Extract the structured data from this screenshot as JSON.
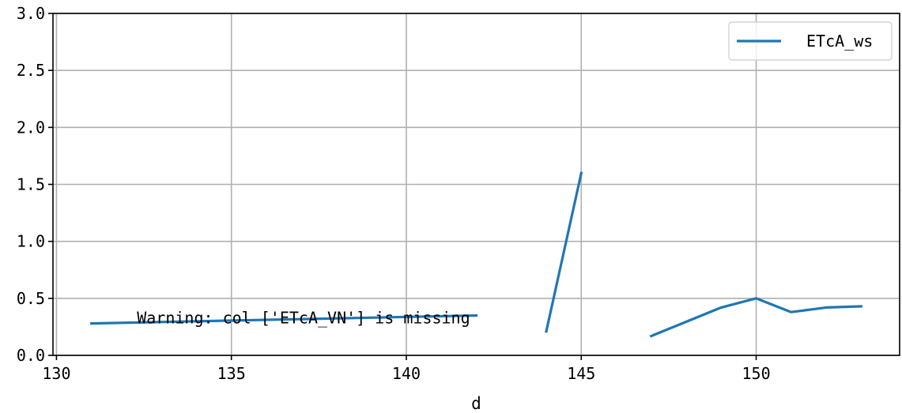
{
  "chart_data": {
    "type": "line",
    "xlabel": "d",
    "ylabel": "",
    "xlim": [
      129.9,
      154.1
    ],
    "ylim": [
      0.0,
      3.0
    ],
    "xticks": [
      130,
      135,
      140,
      145,
      150
    ],
    "xtick_labels": [
      "130",
      "135",
      "140",
      "145",
      "150"
    ],
    "yticks": [
      0.0,
      0.5,
      1.0,
      1.5,
      2.0,
      2.5,
      3.0
    ],
    "ytick_labels": [
      "0.0",
      "0.5",
      "1.0",
      "1.5",
      "2.0",
      "2.5",
      "3.0"
    ],
    "grid": true,
    "legend_position": "top-right",
    "series": [
      {
        "name": "ETcA_ws",
        "color": "#1f77b4",
        "segments": [
          {
            "x": [
              131,
              142
            ],
            "y": [
              0.28,
              0.35
            ]
          },
          {
            "x": [
              144,
              145
            ],
            "y": [
              0.21,
              1.6
            ]
          },
          {
            "x": [
              147,
              149,
              150,
              151,
              152,
              153
            ],
            "y": [
              0.17,
              0.42,
              0.5,
              0.38,
              0.42,
              0.43
            ]
          }
        ]
      }
    ],
    "annotations": [
      {
        "text": "Warning: col ['ETcA_VN'] is missing",
        "x": 132.3,
        "y": 0.28
      }
    ]
  }
}
